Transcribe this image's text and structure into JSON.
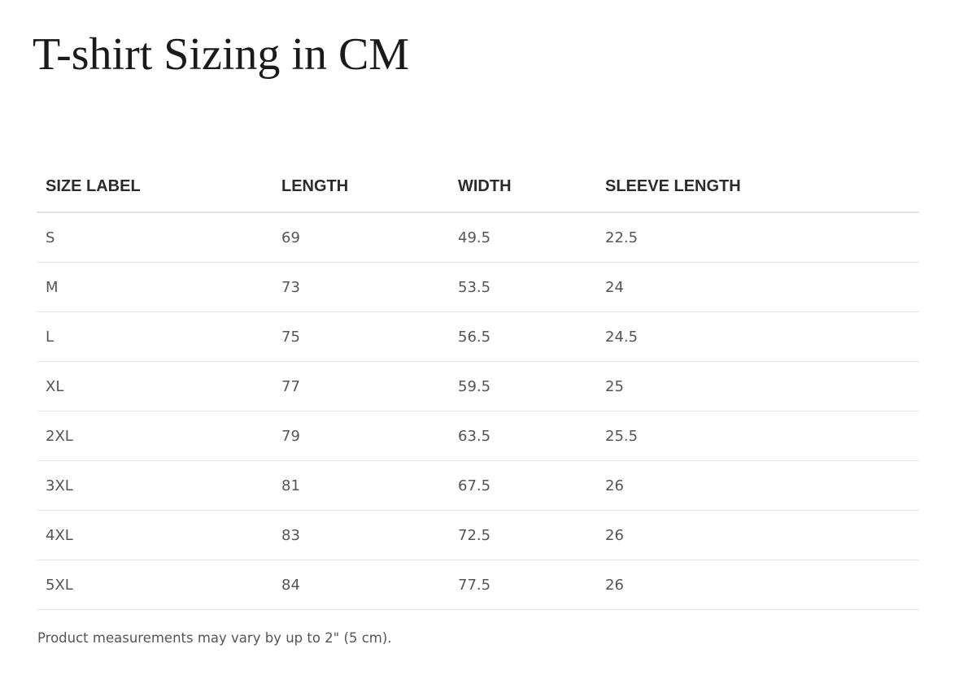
{
  "title": "T-shirt Sizing in CM",
  "table": {
    "headers": [
      "SIZE LABEL",
      "LENGTH",
      "WIDTH",
      "SLEEVE LENGTH"
    ],
    "rows": [
      [
        "S",
        "69",
        "49.5",
        "22.5"
      ],
      [
        "M",
        "73",
        "53.5",
        "24"
      ],
      [
        "L",
        "75",
        "56.5",
        "24.5"
      ],
      [
        "XL",
        "77",
        "59.5",
        "25"
      ],
      [
        "2XL",
        "79",
        "63.5",
        "25.5"
      ],
      [
        "3XL",
        "81",
        "67.5",
        "26"
      ],
      [
        "4XL",
        "83",
        "72.5",
        "26"
      ],
      [
        "5XL",
        "84",
        "77.5",
        "26"
      ]
    ]
  },
  "footnote": "Product measurements may vary by up to 2\" (5 cm)."
}
